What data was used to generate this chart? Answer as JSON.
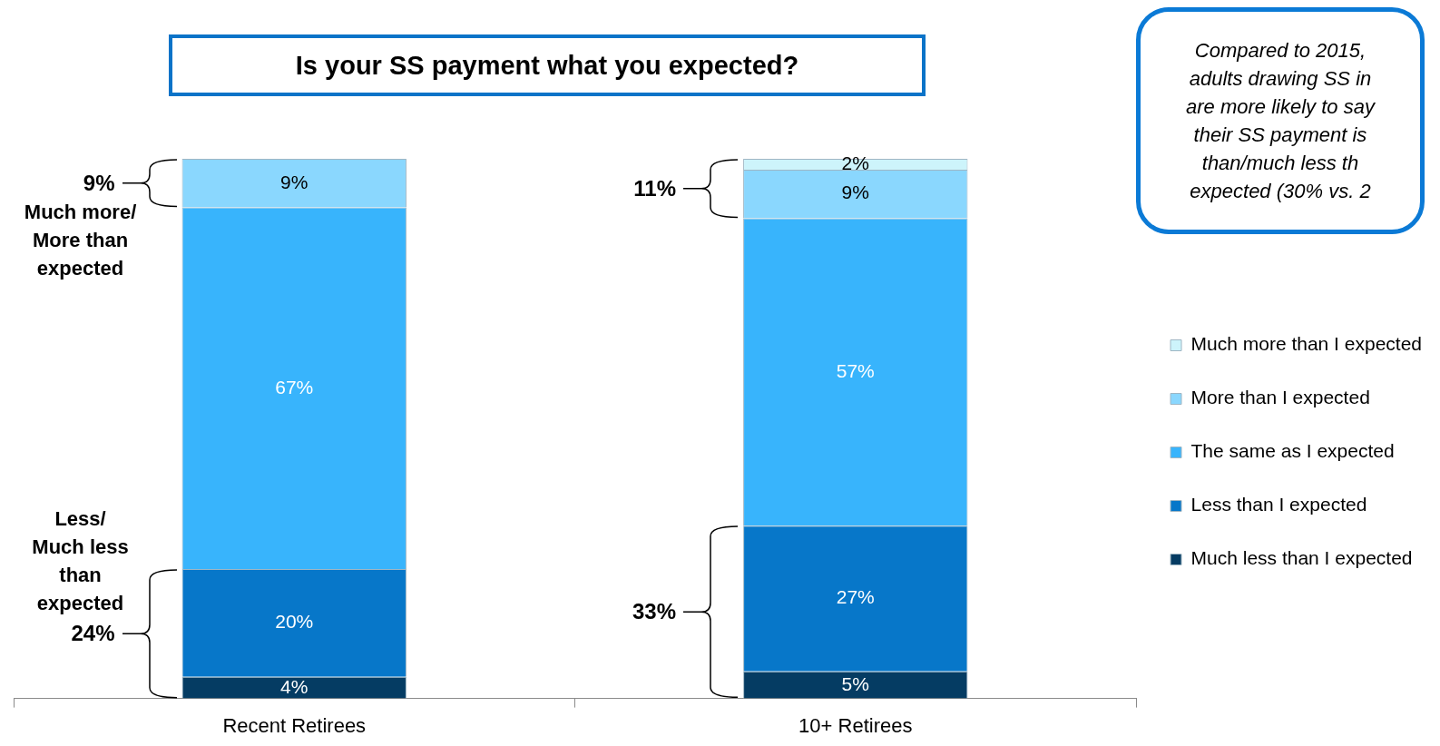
{
  "chart_data": {
    "type": "bar",
    "title": "Is your SS payment what you expected?",
    "categories": [
      "Recent Retirees",
      "10+ Retirees"
    ],
    "stacked": true,
    "legend": "right",
    "grid": false,
    "series": [
      {
        "name": "Much less than I expected",
        "color": "#053c63",
        "values": [
          4,
          5
        ],
        "value_labels": [
          "4%",
          "5%"
        ]
      },
      {
        "name": "Less than I expected",
        "color": "#0777c9",
        "values": [
          20,
          27
        ],
        "value_labels": [
          "20%",
          "27%"
        ]
      },
      {
        "name": "The same as I expected",
        "color": "#38b4fc",
        "values": [
          67,
          57
        ],
        "value_labels": [
          "67%",
          "57%"
        ]
      },
      {
        "name": "More than I expected",
        "color": "#8ad7fe",
        "values": [
          9,
          9
        ],
        "value_labels": [
          "9%",
          "9%"
        ]
      },
      {
        "name": "Much more than I expected",
        "color": "#cdf4fb",
        "values": [
          null,
          2
        ],
        "value_labels": [
          null,
          "2%"
        ]
      }
    ],
    "annotations": [
      "9%",
      "Much more/\nMore than\nexpected",
      "Less/\nMuch less\nthan\nexpected",
      "24%",
      "11%",
      "33%",
      "Compared to 2015,\nadults drawing SS in\nare more likely to say\ntheir SS payment is\nthan/much less th\nexpected (30% vs. 2"
    ]
  }
}
